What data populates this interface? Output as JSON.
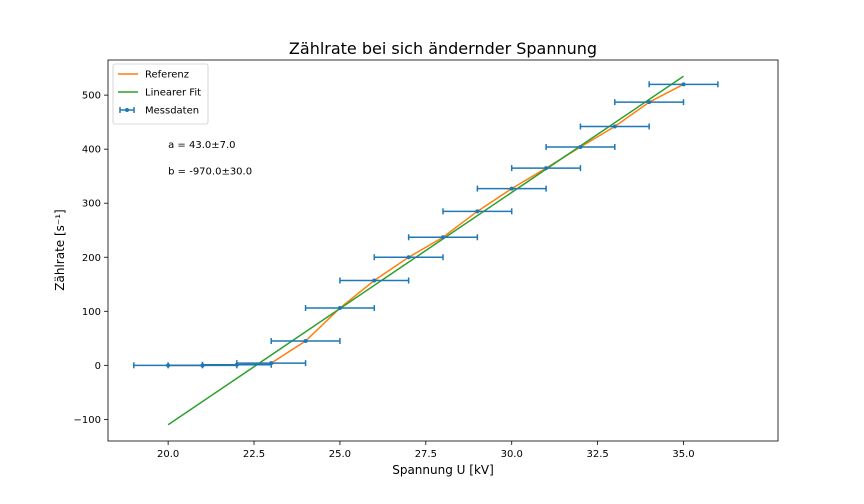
{
  "chart_data": {
    "type": "line",
    "title": "Zählrate bei sich ändernder Spannung",
    "xlabel": "Spannung U [kV]",
    "ylabel": "Zählrate [s⁻¹]",
    "xlim": [
      18.25,
      37.75
    ],
    "ylim": [
      -140,
      565
    ],
    "xticks": [
      "20.0",
      "22.5",
      "25.0",
      "27.5",
      "30.0",
      "32.5",
      "35.0"
    ],
    "xtick_values": [
      20,
      22.5,
      25,
      27.5,
      30,
      32.5,
      35
    ],
    "yticks": [
      "−100",
      "0",
      "100",
      "200",
      "300",
      "400",
      "500"
    ],
    "ytick_values": [
      -100,
      0,
      100,
      200,
      300,
      400,
      500
    ],
    "grid": false,
    "legend_position": "top-left",
    "series": [
      {
        "name": "Referenz",
        "kind": "line",
        "color": "#ff7f0e",
        "x": [
          20,
          21,
          22,
          23,
          24,
          25,
          26,
          27,
          28,
          29,
          30,
          31,
          32,
          33,
          34,
          35
        ],
        "y": [
          0,
          0,
          1,
          4,
          45,
          106,
          157,
          200,
          237,
          285,
          327,
          365,
          404,
          442,
          487,
          520
        ]
      },
      {
        "name": "Linearer Fit",
        "kind": "line",
        "color": "#2ca02c",
        "x": [
          20,
          35
        ],
        "y": [
          -110,
          535
        ]
      },
      {
        "name": "Messdaten",
        "kind": "errorbar",
        "color": "#1f77b4",
        "xerr": 1,
        "x": [
          20,
          21,
          22,
          23,
          24,
          25,
          26,
          27,
          28,
          29,
          30,
          31,
          32,
          33,
          34,
          35
        ],
        "y": [
          0,
          0,
          1,
          4,
          45,
          106,
          157,
          200,
          237,
          285,
          327,
          365,
          404,
          442,
          487,
          520
        ]
      }
    ],
    "annotations": [
      {
        "text": "a = 43.0±7.0",
        "x": 20,
        "y": 402
      },
      {
        "text": "b = -970.0±30.0",
        "x": 20,
        "y": 353
      }
    ]
  }
}
